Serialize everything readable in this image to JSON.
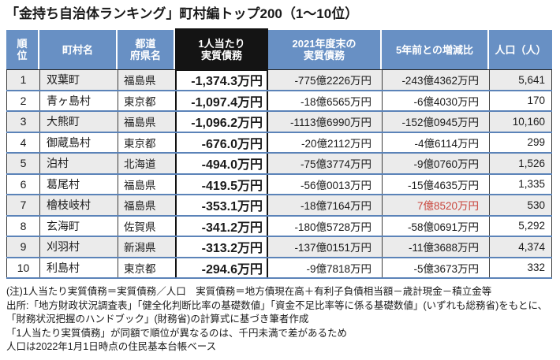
{
  "title": "「金持ち自治体ランキング」町村編トップ200（1～10位）",
  "chart_data": {
    "type": "table",
    "title": "「金持ち自治体ランキング」町村編トップ200（1～10位）",
    "columns": [
      "順\n位",
      "町村名",
      "都道\n府県名",
      "1人当たり\n実質債務",
      "2021年度末の\n実質債務",
      "5年前との増減比",
      "人口（人）"
    ],
    "rows": [
      [
        "1",
        "双葉町",
        "福島県",
        "-1,374.3万円",
        "-775億2226万円",
        "-243億4362万円",
        "5,641"
      ],
      [
        "2",
        "青ヶ島村",
        "東京都",
        "-1,097.4万円",
        "-18億6565万円",
        "-6億4030万円",
        "170"
      ],
      [
        "3",
        "大熊町",
        "福島県",
        "-1,096.2万円",
        "-1113億6990万円",
        "-152億0945万円",
        "10,160"
      ],
      [
        "4",
        "御蔵島村",
        "東京都",
        "-676.0万円",
        "-20億2112万円",
        "-4億6114万円",
        "299"
      ],
      [
        "5",
        "泊村",
        "北海道",
        "-494.0万円",
        "-75億3774万円",
        "-9億0760万円",
        "1,526"
      ],
      [
        "6",
        "葛尾村",
        "福島県",
        "-419.5万円",
        "-56億0013万円",
        "-15億4635万円",
        "1,335"
      ],
      [
        "7",
        "檜枝岐村",
        "福島県",
        "-353.1万円",
        "-18億7164万円",
        "7億8520万円",
        "530"
      ],
      [
        "8",
        "玄海町",
        "佐賀県",
        "-341.2万円",
        "-180億5728万円",
        "-58億0691万円",
        "5,292"
      ],
      [
        "9",
        "刈羽村",
        "新潟県",
        "-313.2万円",
        "-137億0151万円",
        "-11億3688万円",
        "4,374"
      ],
      [
        "10",
        "利島村",
        "東京都",
        "-294.6万円",
        "-9億7818万円",
        "-5億3673万円",
        "332"
      ]
    ],
    "highlight_positive_cell": {
      "row": 7,
      "column": "5年前との増減比",
      "value": "7億8520万円",
      "color": "#c9463d"
    }
  },
  "notes": [
    "(注)1人当たり実質債務＝実質債務／人口　実質債務＝地方債現在高＋有利子負債相当額－歳計現金－積立金等",
    "出所:「地方財政状況調査表」「健全化判断比率の基礎数値」「資金不足比率等に係る基礎数値」(いずれも総務省)をもとに、",
    "「財務状況把握のハンドブック」(財務省)の計算式に基づき筆者作成",
    "「1人当たり実質債務」が同額で順位が異なるのは、千円未満で差があるため",
    "人口は2022年1月1日時点の住民基本台帳ベース"
  ],
  "colors": {
    "header_bg": "#6890c4",
    "highlight_header_bg": "#141414",
    "header_text": "#ffffff",
    "row_stripe": "#ebebeb",
    "row_separator": "#5b83b8",
    "cell_border": "#3c3c3c",
    "positive_value": "#c9463d",
    "text": "#1a1a1a"
  }
}
